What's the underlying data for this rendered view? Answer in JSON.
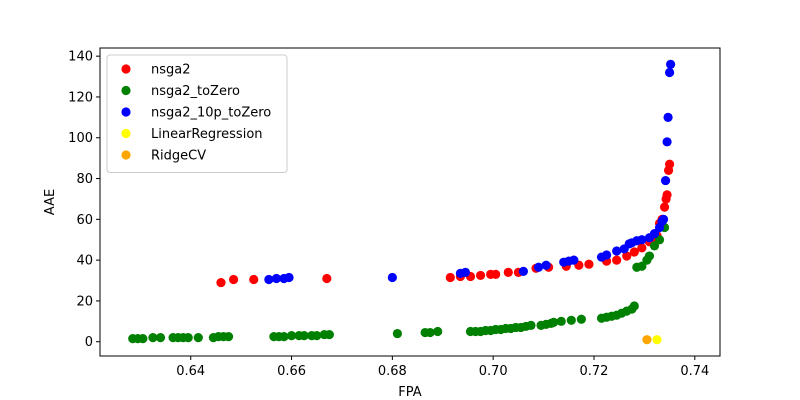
{
  "chart_data": {
    "type": "scatter",
    "xlabel": "FPA",
    "ylabel": "AAE",
    "xlim": [
      0.622,
      0.745
    ],
    "ylim": [
      -7,
      144
    ],
    "xticks": [
      0.64,
      0.66,
      0.68,
      0.7,
      0.72,
      0.74
    ],
    "xtick_labels": [
      "0.64",
      "0.66",
      "0.68",
      "0.70",
      "0.72",
      "0.74"
    ],
    "yticks": [
      0,
      20,
      40,
      60,
      80,
      100,
      120,
      140
    ],
    "ytick_labels": [
      "0",
      "20",
      "40",
      "60",
      "80",
      "100",
      "120",
      "140"
    ],
    "grid": false,
    "legend_position": "top-left",
    "series": [
      {
        "name": "nsga2",
        "color": "#ff0000",
        "points": [
          [
            0.646,
            29
          ],
          [
            0.6485,
            30.5
          ],
          [
            0.6525,
            30.5
          ],
          [
            0.667,
            31
          ],
          [
            0.6915,
            31.5
          ],
          [
            0.6935,
            32
          ],
          [
            0.6955,
            32
          ],
          [
            0.6975,
            32.5
          ],
          [
            0.6995,
            33
          ],
          [
            0.7005,
            33
          ],
          [
            0.703,
            34
          ],
          [
            0.705,
            34
          ],
          [
            0.7085,
            36
          ],
          [
            0.711,
            36.5
          ],
          [
            0.7145,
            37
          ],
          [
            0.717,
            37.5
          ],
          [
            0.719,
            38
          ],
          [
            0.7225,
            39.5
          ],
          [
            0.7245,
            40
          ],
          [
            0.7265,
            42
          ],
          [
            0.728,
            44
          ],
          [
            0.7295,
            46
          ],
          [
            0.731,
            49
          ],
          [
            0.732,
            50.5
          ],
          [
            0.7325,
            52
          ],
          [
            0.733,
            58
          ],
          [
            0.7335,
            60
          ],
          [
            0.734,
            66
          ],
          [
            0.7343,
            70
          ],
          [
            0.7345,
            72
          ],
          [
            0.7348,
            84
          ],
          [
            0.735,
            87
          ]
        ]
      },
      {
        "name": "nsga2_toZero",
        "color": "#008000",
        "points": [
          [
            0.6285,
            1.5
          ],
          [
            0.6295,
            1.5
          ],
          [
            0.6305,
            1.5
          ],
          [
            0.6325,
            2
          ],
          [
            0.634,
            2
          ],
          [
            0.6365,
            2
          ],
          [
            0.6375,
            2
          ],
          [
            0.6385,
            2
          ],
          [
            0.6395,
            2
          ],
          [
            0.6415,
            2
          ],
          [
            0.6445,
            2
          ],
          [
            0.6455,
            2.5
          ],
          [
            0.6465,
            2.5
          ],
          [
            0.6475,
            2.5
          ],
          [
            0.6565,
            2.5
          ],
          [
            0.6575,
            2.5
          ],
          [
            0.6585,
            2.5
          ],
          [
            0.66,
            3
          ],
          [
            0.6615,
            3
          ],
          [
            0.6625,
            3
          ],
          [
            0.664,
            3
          ],
          [
            0.665,
            3
          ],
          [
            0.6665,
            3.5
          ],
          [
            0.6675,
            3.5
          ],
          [
            0.681,
            4
          ],
          [
            0.6865,
            4.5
          ],
          [
            0.6875,
            4.5
          ],
          [
            0.689,
            5
          ],
          [
            0.6955,
            5
          ],
          [
            0.6965,
            5
          ],
          [
            0.6975,
            5
          ],
          [
            0.6985,
            5.5
          ],
          [
            0.6995,
            5.5
          ],
          [
            0.7005,
            6
          ],
          [
            0.7015,
            6
          ],
          [
            0.7025,
            6.5
          ],
          [
            0.7035,
            6.5
          ],
          [
            0.7045,
            7
          ],
          [
            0.7055,
            7
          ],
          [
            0.7065,
            7.5
          ],
          [
            0.7075,
            8
          ],
          [
            0.7095,
            8
          ],
          [
            0.7105,
            8.5
          ],
          [
            0.7115,
            9
          ],
          [
            0.712,
            9.5
          ],
          [
            0.7135,
            10
          ],
          [
            0.7155,
            10.5
          ],
          [
            0.7175,
            11
          ],
          [
            0.7215,
            11.5
          ],
          [
            0.7225,
            12
          ],
          [
            0.7235,
            12.5
          ],
          [
            0.7245,
            13
          ],
          [
            0.7255,
            14
          ],
          [
            0.7265,
            15
          ],
          [
            0.7275,
            16
          ],
          [
            0.728,
            17.5
          ],
          [
            0.7285,
            36.5
          ],
          [
            0.7295,
            37
          ],
          [
            0.7305,
            40
          ],
          [
            0.731,
            42
          ],
          [
            0.732,
            47
          ],
          [
            0.733,
            50
          ],
          [
            0.734,
            56
          ]
        ]
      },
      {
        "name": "nsga2_10p_toZero",
        "color": "#0000ff",
        "points": [
          [
            0.6555,
            30.5
          ],
          [
            0.657,
            31
          ],
          [
            0.6585,
            31
          ],
          [
            0.6595,
            31.5
          ],
          [
            0.68,
            31.5
          ],
          [
            0.6935,
            33.5
          ],
          [
            0.6945,
            34
          ],
          [
            0.706,
            34.5
          ],
          [
            0.709,
            36.5
          ],
          [
            0.7105,
            37.5
          ],
          [
            0.714,
            39
          ],
          [
            0.715,
            39.5
          ],
          [
            0.716,
            40
          ],
          [
            0.7215,
            41.5
          ],
          [
            0.7225,
            42.5
          ],
          [
            0.7245,
            44.5
          ],
          [
            0.726,
            45.5
          ],
          [
            0.727,
            48
          ],
          [
            0.7275,
            48.5
          ],
          [
            0.7285,
            49.5
          ],
          [
            0.7295,
            50
          ],
          [
            0.731,
            51
          ],
          [
            0.732,
            53
          ],
          [
            0.733,
            56
          ],
          [
            0.7335,
            59
          ],
          [
            0.7338,
            60
          ],
          [
            0.7342,
            79
          ],
          [
            0.7345,
            98
          ],
          [
            0.7347,
            110
          ],
          [
            0.735,
            132
          ],
          [
            0.7352,
            136
          ]
        ]
      },
      {
        "name": "LinearRegression",
        "color": "#ffff00",
        "points": [
          [
            0.7325,
            1
          ]
        ]
      },
      {
        "name": "RidgeCV",
        "color": "#ffa500",
        "points": [
          [
            0.7305,
            1
          ]
        ]
      }
    ]
  }
}
